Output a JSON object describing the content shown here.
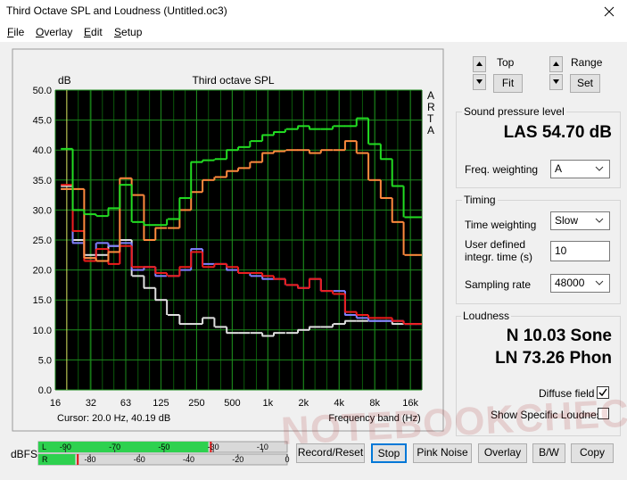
{
  "window": {
    "title": "Third Octave SPL and Loudness (Untitled.oc3)"
  },
  "menu": [
    "File",
    "Overlay",
    "Edit",
    "Setup"
  ],
  "chart_data": {
    "type": "step",
    "title": "Third octave SPL",
    "y_label": "dB",
    "x_label": "Frequency band (Hz)",
    "side_label": "ARTA",
    "log_x": true,
    "grid": true,
    "x": [
      20,
      25,
      31.5,
      40,
      50,
      63,
      80,
      100,
      125,
      160,
      200,
      250,
      315,
      400,
      500,
      630,
      800,
      1000,
      1250,
      1600,
      2000,
      2500,
      3150,
      4000,
      5000,
      6300,
      8000,
      10000,
      12500,
      16000,
      20000
    ],
    "series": [
      {
        "color": "#22dd22",
        "values": [
          40.2,
          30,
          29.3,
          29,
          30.3,
          34.2,
          28,
          27.5,
          27.5,
          28.5,
          32,
          38,
          38.3,
          38.5,
          40,
          40.5,
          41.5,
          42.5,
          43,
          43.5,
          44,
          43.5,
          43.5,
          44,
          44,
          45.3,
          41,
          38.5,
          34,
          28.8,
          28.8
        ]
      },
      {
        "color": "#ff8a3d",
        "values": [
          33.5,
          33.5,
          22,
          21.5,
          23,
          35.3,
          32.5,
          25,
          27,
          27,
          30,
          33,
          35,
          35.5,
          36.5,
          37,
          38,
          39.5,
          39.8,
          40,
          40,
          39.5,
          40,
          40,
          41.5,
          39.5,
          35,
          32,
          28,
          22.5,
          22.5
        ]
      },
      {
        "color": "#ee1c1c",
        "values": [
          34.2,
          26.5,
          21.5,
          23.5,
          21,
          24,
          20.5,
          20.5,
          19.5,
          19,
          20.5,
          23,
          20.5,
          21,
          20.5,
          19.5,
          19.5,
          19,
          18.5,
          17.5,
          17,
          18.5,
          16.5,
          16,
          13,
          12.5,
          12,
          12,
          11.5,
          11,
          11
        ]
      },
      {
        "color": "#8080ff",
        "values": [
          33.5,
          24.5,
          22,
          24.5,
          24,
          24.5,
          20,
          20.5,
          19,
          19,
          20,
          23.5,
          21,
          21,
          20,
          19.5,
          19,
          18.5,
          18.5,
          17.5,
          17,
          18.5,
          16.5,
          16.5,
          12.5,
          12,
          11.5,
          11.5,
          11.5,
          11,
          11
        ]
      },
      {
        "color": "#e0e0e0",
        "values": [
          34,
          25,
          22.5,
          22.5,
          24,
          25,
          19,
          17,
          15,
          12.5,
          11,
          11,
          12,
          10.5,
          9.5,
          9.5,
          9.5,
          9,
          9.5,
          9.5,
          10,
          10.5,
          10.5,
          11,
          11.5,
          11.5,
          11.5,
          11.5,
          11,
          11,
          11
        ]
      }
    ],
    "xlim": [
      16,
      20000
    ],
    "xticks": [
      16,
      32,
      63,
      125,
      250,
      500,
      {
        "value": 1000,
        "label": "1k"
      },
      {
        "value": 2000,
        "label": "2k"
      },
      {
        "value": 4000,
        "label": "4k"
      },
      {
        "value": 8000,
        "label": "8k"
      },
      {
        "value": 16000,
        "label": "16k"
      }
    ],
    "ylim": [
      0,
      50
    ],
    "yticks": [
      {
        "value": 0,
        "label": "0.0"
      },
      {
        "value": 5,
        "label": "5.0"
      },
      {
        "value": 10,
        "label": "10.0"
      },
      {
        "value": 15,
        "label": "15.0"
      },
      {
        "value": 20,
        "label": "20.0"
      },
      {
        "value": 25,
        "label": "25.0"
      },
      {
        "value": 30,
        "label": "30.0"
      },
      {
        "value": 35,
        "label": "35.0"
      },
      {
        "value": 40,
        "label": "40.0"
      },
      {
        "value": 45,
        "label": "45.0"
      },
      {
        "value": 50,
        "label": "50.0"
      }
    ]
  },
  "cursor": "Cursor:  20.0 Hz, 40.19 dB",
  "controls": {
    "top": "Top",
    "fit": "Fit",
    "range": "Range",
    "set": "Set"
  },
  "spl": {
    "title": "Sound pressure level",
    "reading": "LAS 54.70 dB",
    "freq_weighting_label": "Freq. weighting",
    "freq_weighting": "A"
  },
  "timing": {
    "title": "Timing",
    "time_weighting_label": "Time weighting",
    "time_weighting": "Slow",
    "integr_label": "User defined integr. time (s)",
    "integr": "10",
    "sampling_label": "Sampling rate",
    "sampling": "48000"
  },
  "loudness": {
    "title": "Loudness",
    "n": "N 10.03 Sone",
    "ln": "LN 73.26 Phon",
    "diffuse_label": "Diffuse field",
    "specific_label": "Show Specific Loudness"
  },
  "meter": {
    "unit": "dBFS",
    "lim": [
      -101,
      0
    ],
    "channels": [
      {
        "label": "L",
        "level": -32,
        "peak": -31,
        "ticks": [
          -90,
          -70,
          -50,
          -30,
          -10
        ]
      },
      {
        "label": "R",
        "level": -86,
        "peak": -85,
        "ticks": [
          -80,
          -60,
          -40,
          -20,
          0
        ]
      }
    ]
  },
  "buttons": [
    "Record/Reset",
    "Stop",
    "Pink Noise",
    "Overlay",
    "B/W",
    "Copy"
  ],
  "watermark": "NOTEBOOKCHECK"
}
